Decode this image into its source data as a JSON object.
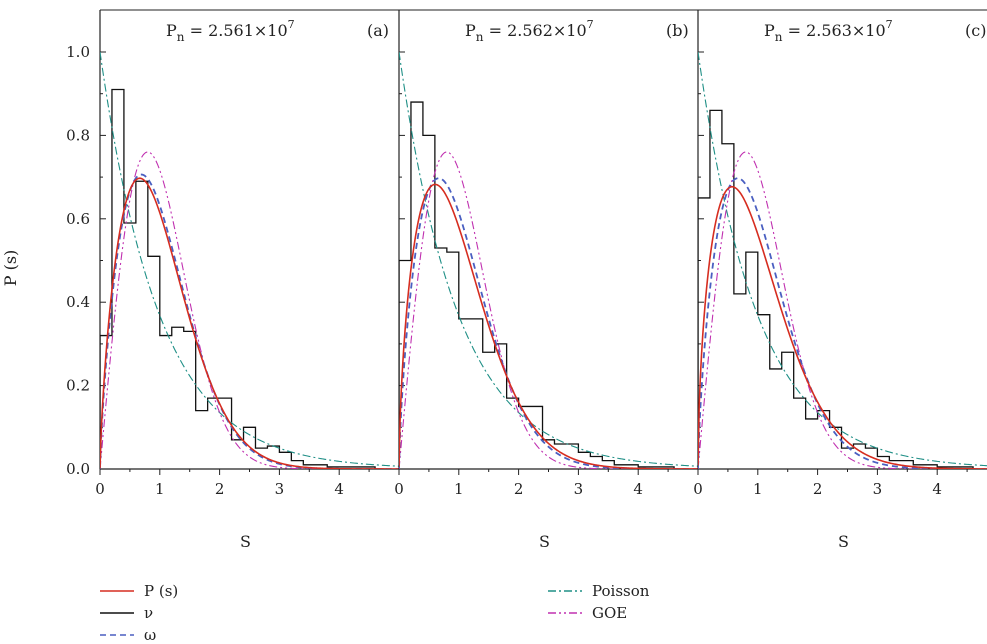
{
  "chart_data": {
    "type": "line",
    "ylabel": "P (s)",
    "xlabel": "S",
    "xlim": [
      0,
      5
    ],
    "ylim": [
      0,
      1.1
    ],
    "xticks": [
      0,
      1,
      2,
      3,
      4
    ],
    "yticks": [
      0.0,
      0.2,
      0.4,
      0.6,
      0.8,
      1.0
    ],
    "ytick_labels": [
      "0.0",
      "0.2",
      "0.4",
      "0.6",
      "0.8",
      "1.0"
    ],
    "grid": false,
    "legend_placement": "bottom",
    "legend": [
      {
        "key": "ps",
        "label": "P (s)",
        "color": "#d62d20",
        "dash": "solid"
      },
      {
        "key": "nu",
        "label": "ν",
        "color": "#111111",
        "dash": "solid"
      },
      {
        "key": "omega",
        "label": "ω",
        "color": "#4a5fc1",
        "dash": "dashed"
      },
      {
        "key": "poisson",
        "label": "Poisson",
        "color": "#1f8f86",
        "dash": "dashdot"
      },
      {
        "key": "goe",
        "label": "GOE",
        "color": "#c030b0",
        "dash": "dashdotdot"
      }
    ],
    "panels": [
      {
        "label": "(a)",
        "pn_base": "P",
        "pn_sub": "n",
        "pn_eq": " = 2.561×10",
        "pn_exp": "7",
        "histogram": {
          "bin_width": 0.2,
          "heights": [
            0.32,
            0.91,
            0.59,
            0.69,
            0.51,
            0.32,
            0.34,
            0.33,
            0.14,
            0.17,
            0.17,
            0.07,
            0.1,
            0.05,
            0.055,
            0.04,
            0.02,
            0.01,
            0.01,
            0.005,
            0.005,
            0.005,
            0.005,
            0.0
          ]
        },
        "ps": {
          "a": 0.7,
          "b": 1.6
        },
        "omega": {
          "a": 0.75,
          "b": 1.45
        }
      },
      {
        "label": "(b)",
        "pn_base": "P",
        "pn_sub": "n",
        "pn_eq": " = 2.562×10",
        "pn_exp": "7",
        "histogram": {
          "bin_width": 0.2,
          "heights": [
            0.5,
            0.88,
            0.8,
            0.53,
            0.52,
            0.36,
            0.36,
            0.28,
            0.3,
            0.17,
            0.15,
            0.15,
            0.07,
            0.06,
            0.06,
            0.04,
            0.03,
            0.02,
            0.01,
            0.01,
            0.005,
            0.005,
            0.005,
            0.0
          ]
        },
        "ps": {
          "a": 0.6,
          "b": 1.55
        },
        "omega": {
          "a": 0.7,
          "b": 1.45
        }
      },
      {
        "label": "(c)",
        "pn_base": "P",
        "pn_sub": "n",
        "pn_eq": " = 2.563×10",
        "pn_exp": "7",
        "histogram": {
          "bin_width": 0.2,
          "heights": [
            0.65,
            0.86,
            0.78,
            0.42,
            0.52,
            0.37,
            0.24,
            0.28,
            0.17,
            0.12,
            0.14,
            0.1,
            0.05,
            0.06,
            0.05,
            0.03,
            0.02,
            0.02,
            0.01,
            0.01,
            0.005,
            0.005,
            0.005,
            0.0
          ]
        },
        "ps": {
          "a": 0.55,
          "b": 1.5
        },
        "omega": {
          "a": 0.7,
          "b": 1.45
        }
      }
    ]
  }
}
